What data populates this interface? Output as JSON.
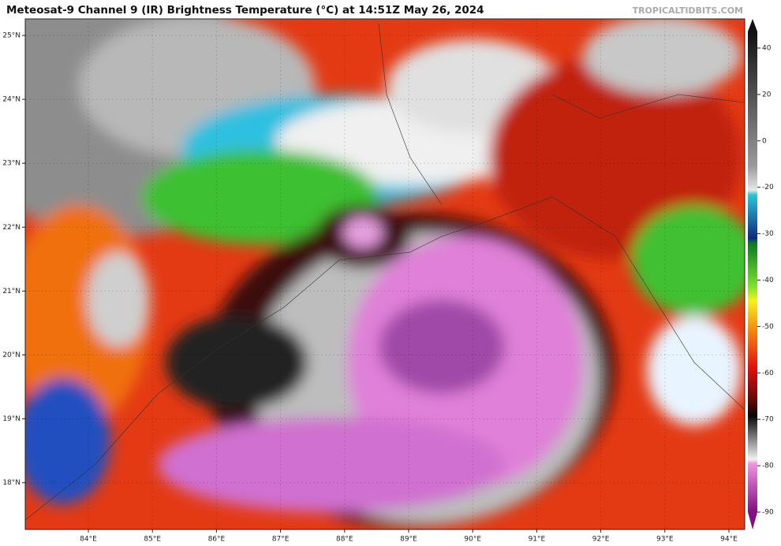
{
  "header": {
    "title": "Meteosat-9 Channel 9 (IR) Brightness Temperature (°C) at 14:51Z May 26, 2024",
    "source": "TROPICALTIDBITS.COM"
  },
  "map": {
    "lat_ticks": [
      {
        "value": 25,
        "label": "25°N"
      },
      {
        "value": 24,
        "label": "24°N"
      },
      {
        "value": 23,
        "label": "23°N"
      },
      {
        "value": 22,
        "label": "22°N"
      },
      {
        "value": 21,
        "label": "21°N"
      },
      {
        "value": 20,
        "label": "20°N"
      },
      {
        "value": 19,
        "label": "19°N"
      },
      {
        "value": 18,
        "label": "18°N"
      }
    ],
    "lon_ticks": [
      {
        "value": 84,
        "label": "84°E"
      },
      {
        "value": 85,
        "label": "85°E"
      },
      {
        "value": 86,
        "label": "86°E"
      },
      {
        "value": 87,
        "label": "87°E"
      },
      {
        "value": 88,
        "label": "88°E"
      },
      {
        "value": 89,
        "label": "89°E"
      },
      {
        "value": 90,
        "label": "90°E"
      },
      {
        "value": 91,
        "label": "91°E"
      },
      {
        "value": 92,
        "label": "92°E"
      },
      {
        "value": 93,
        "label": "93°E"
      },
      {
        "value": 94,
        "label": "94°E"
      }
    ]
  },
  "colorbar": {
    "ticks": [
      40,
      20,
      0,
      -20,
      -30,
      -40,
      -50,
      -60,
      -70,
      -80,
      -90
    ]
  }
}
